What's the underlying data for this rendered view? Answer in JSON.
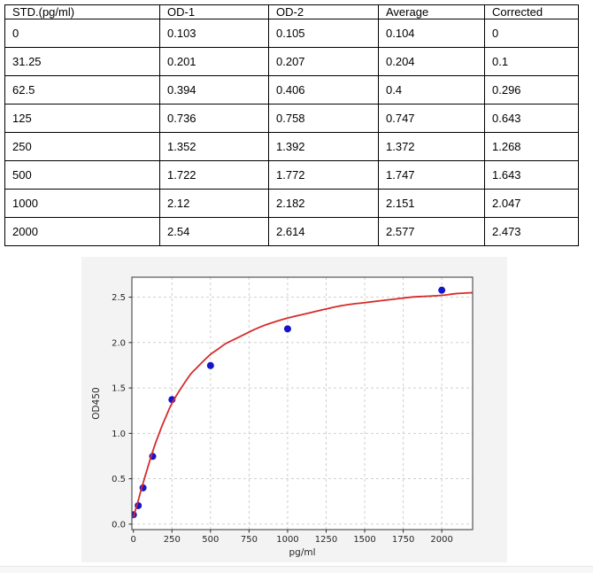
{
  "table": {
    "columns": [
      "STD.(pg/ml)",
      "OD-1",
      "OD-2",
      "Average",
      "Corrected"
    ],
    "rows": [
      [
        "0",
        "0.103",
        "0.105",
        "0.104",
        "0"
      ],
      [
        "31.25",
        "0.201",
        "0.207",
        "0.204",
        "0.1"
      ],
      [
        "62.5",
        "0.394",
        "0.406",
        "0.4",
        "0.296"
      ],
      [
        "125",
        "0.736",
        "0.758",
        "0.747",
        "0.643"
      ],
      [
        "250",
        "1.352",
        "1.392",
        "1.372",
        "1.268"
      ],
      [
        "500",
        "1.722",
        "1.772",
        "1.747",
        "1.643"
      ],
      [
        "1000",
        "2.12",
        "2.182",
        "2.151",
        "2.047"
      ],
      [
        "2000",
        "2.54",
        "2.614",
        "2.577",
        "2.473"
      ]
    ]
  },
  "chart_data": {
    "type": "scatter",
    "title": "",
    "xlabel": "pg/ml",
    "ylabel": "OD450",
    "xlim": [
      -10,
      2200
    ],
    "ylim": [
      -0.06,
      2.72
    ],
    "xticks": [
      0,
      250,
      500,
      750,
      1000,
      1250,
      1500,
      1750,
      2000
    ],
    "xtick_labels": [
      "0",
      "250",
      "500",
      "750",
      "1000",
      "1250",
      "1500",
      "1750",
      "2000"
    ],
    "yticks": [
      0,
      0.5,
      1.0,
      1.5,
      2.0,
      2.5
    ],
    "ytick_labels": [
      "0.0",
      "0.5",
      "1.0",
      "1.5",
      "2.0",
      "2.5"
    ],
    "grid": "dashed",
    "legend": false,
    "series": [
      {
        "name": "standard-points",
        "kind": "scatter",
        "color": "#1515cd",
        "marker_radius": 4,
        "points": [
          [
            0,
            0.104
          ],
          [
            31.25,
            0.204
          ],
          [
            62.5,
            0.4
          ],
          [
            125,
            0.747
          ],
          [
            250,
            1.372
          ],
          [
            500,
            1.747
          ],
          [
            1000,
            2.151
          ],
          [
            2000,
            2.577
          ]
        ]
      },
      {
        "name": "fit-curve",
        "kind": "line",
        "color": "#d62b2b",
        "line_width": 1.8,
        "points": [
          [
            0,
            0.07
          ],
          [
            15,
            0.165
          ],
          [
            31.25,
            0.26
          ],
          [
            47,
            0.36
          ],
          [
            62.5,
            0.45
          ],
          [
            78,
            0.54
          ],
          [
            94,
            0.63
          ],
          [
            110,
            0.72
          ],
          [
            125,
            0.8
          ],
          [
            145,
            0.9
          ],
          [
            165,
            0.99
          ],
          [
            185,
            1.08
          ],
          [
            210,
            1.18
          ],
          [
            235,
            1.28
          ],
          [
            250,
            1.33
          ],
          [
            280,
            1.42
          ],
          [
            310,
            1.5
          ],
          [
            345,
            1.59
          ],
          [
            375,
            1.66
          ],
          [
            410,
            1.72
          ],
          [
            450,
            1.79
          ],
          [
            500,
            1.87
          ],
          [
            550,
            1.93
          ],
          [
            600,
            1.99
          ],
          [
            660,
            2.04
          ],
          [
            720,
            2.09
          ],
          [
            780,
            2.14
          ],
          [
            850,
            2.19
          ],
          [
            920,
            2.23
          ],
          [
            1000,
            2.27
          ],
          [
            1100,
            2.31
          ],
          [
            1200,
            2.35
          ],
          [
            1300,
            2.39
          ],
          [
            1400,
            2.42
          ],
          [
            1500,
            2.44
          ],
          [
            1600,
            2.46
          ],
          [
            1700,
            2.48
          ],
          [
            1800,
            2.5
          ],
          [
            1900,
            2.51
          ],
          [
            2000,
            2.52
          ],
          [
            2100,
            2.54
          ],
          [
            2200,
            2.55
          ]
        ]
      }
    ],
    "colors": {
      "figure_bg": "#f3f3f3",
      "plot_bg": "#ffffff",
      "axis": "#555555",
      "grid": "#c9c9c9",
      "tick_label": "#262626"
    }
  }
}
